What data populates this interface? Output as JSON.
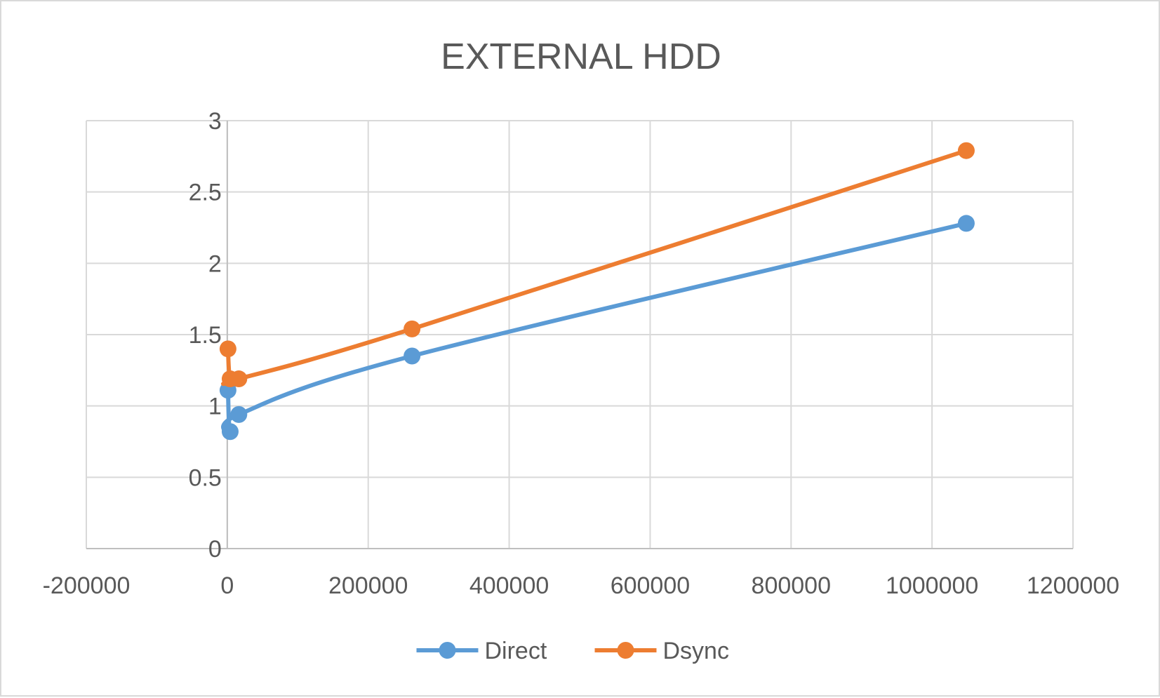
{
  "chart_data": {
    "type": "scatter",
    "title": "EXTERNAL HDD",
    "xlabel": "",
    "ylabel": "",
    "xlim": [
      -200000,
      1200000
    ],
    "ylim": [
      0,
      3
    ],
    "x_ticks": [
      -200000,
      0,
      200000,
      400000,
      600000,
      800000,
      1000000,
      1200000
    ],
    "y_ticks": [
      0,
      0.5,
      1,
      1.5,
      2,
      2.5,
      3
    ],
    "x_tick_labels": [
      "-200000",
      "0",
      "200000",
      "400000",
      "600000",
      "800000",
      "1000000",
      "1200000"
    ],
    "y_tick_labels": [
      "0",
      "0.5",
      "1",
      "1.5",
      "2",
      "2.5",
      "3"
    ],
    "grid": true,
    "legend_position": "bottom",
    "smooth_lines": true,
    "series": [
      {
        "name": "Direct",
        "color": "#5b9bd5",
        "x": [
          1024,
          4096,
          16384,
          262144,
          1048576
        ],
        "y": [
          1.11,
          0.82,
          0.94,
          1.35,
          2.28
        ]
      },
      {
        "name": "Dsync",
        "color": "#ed7d31",
        "x": [
          1024,
          4096,
          16384,
          262144,
          1048576
        ],
        "y": [
          1.4,
          1.19,
          1.19,
          1.54,
          2.79
        ]
      }
    ]
  }
}
